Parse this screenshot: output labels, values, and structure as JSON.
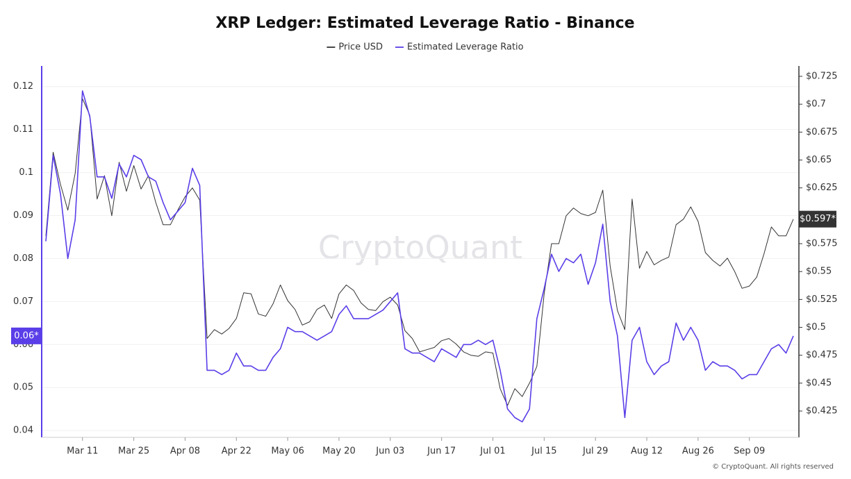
{
  "chart_data": {
    "type": "line",
    "title": "XRP Ledger: Estimated Leverage Ratio - Binance",
    "watermark": "CryptoQuant",
    "footer": "© CryptoQuant. All rights reserved",
    "x": [
      "Mar 01",
      "Mar 03",
      "Mar 05",
      "Mar 07",
      "Mar 09",
      "Mar 11",
      "Mar 13",
      "Mar 15",
      "Mar 17",
      "Mar 19",
      "Mar 21",
      "Mar 23",
      "Mar 25",
      "Mar 27",
      "Mar 29",
      "Mar 31",
      "Apr 02",
      "Apr 04",
      "Apr 06",
      "Apr 08",
      "Apr 10",
      "Apr 12",
      "Apr 14",
      "Apr 16",
      "Apr 18",
      "Apr 20",
      "Apr 22",
      "Apr 24",
      "Apr 26",
      "Apr 28",
      "Apr 30",
      "May 02",
      "May 04",
      "May 06",
      "May 08",
      "May 10",
      "May 12",
      "May 14",
      "May 16",
      "May 18",
      "May 20",
      "May 22",
      "May 24",
      "May 26",
      "May 28",
      "May 30",
      "Jun 01",
      "Jun 03",
      "Jun 05",
      "Jun 07",
      "Jun 09",
      "Jun 11",
      "Jun 13",
      "Jun 15",
      "Jun 17",
      "Jun 19",
      "Jun 21",
      "Jun 23",
      "Jun 25",
      "Jun 27",
      "Jun 29",
      "Jul 01",
      "Jul 03",
      "Jul 05",
      "Jul 07",
      "Jul 09",
      "Jul 11",
      "Jul 13",
      "Jul 15",
      "Jul 17",
      "Jul 19",
      "Jul 21",
      "Jul 23",
      "Jul 25",
      "Jul 27",
      "Jul 29",
      "Jul 31",
      "Aug 02",
      "Aug 04",
      "Aug 06",
      "Aug 08",
      "Aug 10",
      "Aug 12",
      "Aug 14",
      "Aug 16",
      "Aug 18",
      "Aug 20",
      "Aug 22",
      "Aug 24",
      "Aug 26",
      "Aug 28",
      "Aug 30",
      "Sep 01",
      "Sep 03",
      "Sep 05",
      "Sep 07",
      "Sep 09",
      "Sep 11",
      "Sep 13",
      "Sep 15",
      "Sep 17",
      "Sep 19",
      "Sep 21"
    ],
    "xticks": [
      "Mar 11",
      "Mar 25",
      "Apr 08",
      "Apr 22",
      "May 06",
      "May 20",
      "Jun 03",
      "Jun 17",
      "Jul 01",
      "Jul 15",
      "Jul 29",
      "Aug 12",
      "Aug 26",
      "Sep 09"
    ],
    "ylim": [
      0.0384,
      0.1248
    ],
    "yticks": [
      0.04,
      0.05,
      0.06,
      0.07,
      0.08,
      0.09,
      0.1,
      0.11,
      0.12
    ],
    "y2lim": [
      0.4014,
      0.7343
    ],
    "y2ticks": [
      {
        "value": 0.425,
        "label": "$0.425"
      },
      {
        "value": 0.45,
        "label": "$0.45"
      },
      {
        "value": 0.475,
        "label": "$0.475"
      },
      {
        "value": 0.5,
        "label": "$0.5"
      },
      {
        "value": 0.525,
        "label": "$0.525"
      },
      {
        "value": 0.55,
        "label": "$0.55"
      },
      {
        "value": 0.575,
        "label": "$0.575"
      },
      {
        "value": 0.6,
        "label": "$0.6"
      },
      {
        "value": 0.625,
        "label": "$0.625"
      },
      {
        "value": 0.65,
        "label": "$0.65"
      },
      {
        "value": 0.675,
        "label": "$0.675"
      },
      {
        "value": 0.7,
        "label": "$0.7"
      },
      {
        "value": 0.725,
        "label": "$0.725"
      }
    ],
    "grid": true,
    "legend": "top",
    "series": [
      {
        "name": "Price USD",
        "color": "#333333",
        "axis": "y2",
        "current_label": "$0.597*",
        "values": [
          0.582,
          0.657,
          0.628,
          0.605,
          0.638,
          0.705,
          0.69,
          0.615,
          0.636,
          0.6,
          0.648,
          0.622,
          0.645,
          0.624,
          0.636,
          0.612,
          0.592,
          0.592,
          0.605,
          0.617,
          0.625,
          0.614,
          0.49,
          0.498,
          0.494,
          0.499,
          0.508,
          0.531,
          0.53,
          0.512,
          0.51,
          0.521,
          0.538,
          0.524,
          0.516,
          0.502,
          0.505,
          0.516,
          0.52,
          0.508,
          0.53,
          0.538,
          0.533,
          0.522,
          0.516,
          0.515,
          0.523,
          0.527,
          0.52,
          0.497,
          0.49,
          0.478,
          0.48,
          0.482,
          0.488,
          0.49,
          0.485,
          0.478,
          0.475,
          0.474,
          0.478,
          0.477,
          0.445,
          0.43,
          0.445,
          0.438,
          0.45,
          0.465,
          0.53,
          0.575,
          0.575,
          0.6,
          0.607,
          0.602,
          0.6,
          0.603,
          0.623,
          0.555,
          0.515,
          0.498,
          0.615,
          0.553,
          0.568,
          0.556,
          0.56,
          0.563,
          0.592,
          0.597,
          0.608,
          0.595,
          0.567,
          0.56,
          0.555,
          0.562,
          0.55,
          0.535,
          0.537,
          0.545,
          0.566,
          0.59,
          0.582,
          0.582,
          0.597
        ]
      },
      {
        "name": "Estimated Leverage Ratio",
        "color": "#5a3ee8",
        "axis": "y",
        "current_label": "0.06*",
        "values": [
          0.084,
          0.104,
          0.095,
          0.08,
          0.089,
          0.119,
          0.113,
          0.099,
          0.099,
          0.094,
          0.102,
          0.099,
          0.104,
          0.103,
          0.099,
          0.098,
          0.093,
          0.089,
          0.091,
          0.093,
          0.101,
          0.097,
          0.054,
          0.054,
          0.053,
          0.054,
          0.058,
          0.055,
          0.055,
          0.054,
          0.054,
          0.057,
          0.059,
          0.064,
          0.063,
          0.063,
          0.062,
          0.061,
          0.062,
          0.063,
          0.067,
          0.069,
          0.066,
          0.066,
          0.066,
          0.067,
          0.068,
          0.07,
          0.072,
          0.059,
          0.058,
          0.058,
          0.057,
          0.056,
          0.059,
          0.058,
          0.057,
          0.06,
          0.06,
          0.061,
          0.06,
          0.061,
          0.054,
          0.045,
          0.043,
          0.042,
          0.045,
          0.066,
          0.073,
          0.081,
          0.077,
          0.08,
          0.079,
          0.081,
          0.074,
          0.079,
          0.088,
          0.07,
          0.062,
          0.043,
          0.061,
          0.064,
          0.056,
          0.053,
          0.055,
          0.056,
          0.065,
          0.061,
          0.064,
          0.061,
          0.054,
          0.056,
          0.055,
          0.055,
          0.054,
          0.052,
          0.053,
          0.053,
          0.056,
          0.059,
          0.06,
          0.058,
          0.062
        ]
      }
    ]
  }
}
